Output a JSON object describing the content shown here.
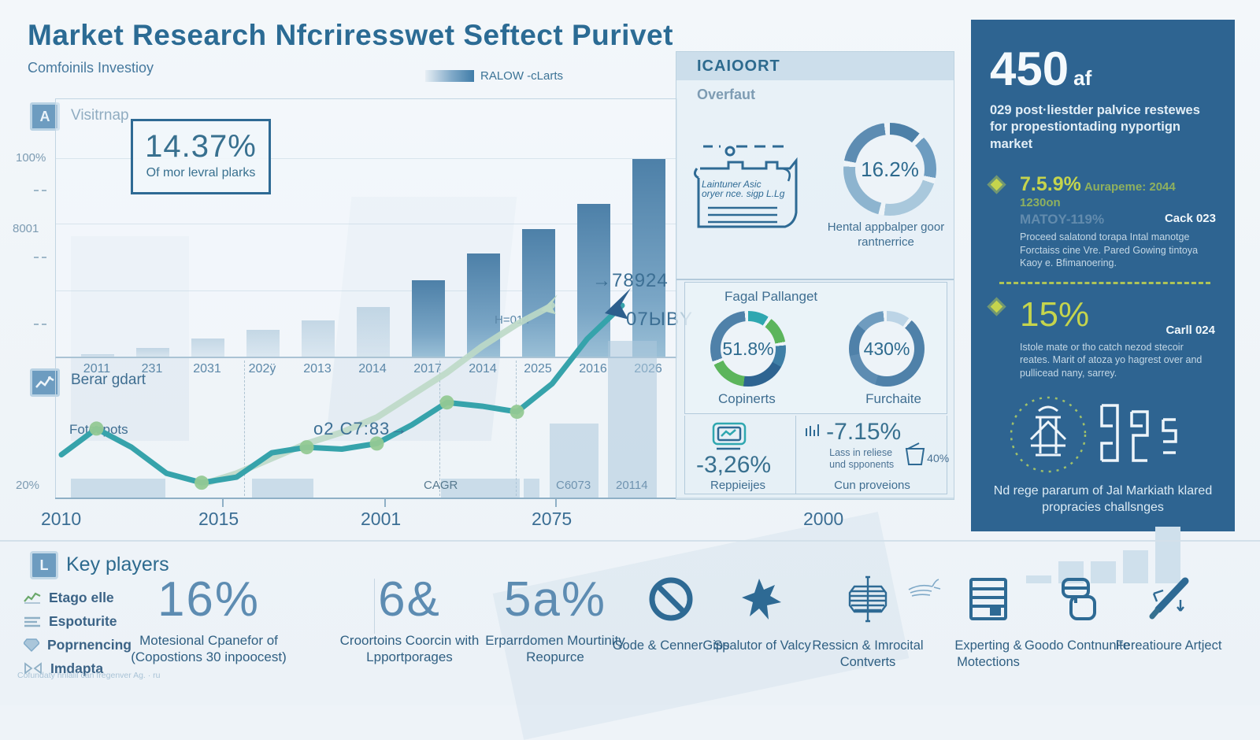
{
  "header": {
    "title": "Market Research Nfcriresswet Seftect Purivet",
    "subtitle": "Comfoinils Investioy",
    "legend_label": "RALOW -cLarts"
  },
  "bar_panel": {
    "chip": "A",
    "label": "Visitrnap",
    "stat_value": "14.37%",
    "stat_caption": "Of mor levral plarks",
    "y_tick_top": "100%",
    "y_tick_mid": "8001",
    "end_label": "H=014"
  },
  "line_panel": {
    "chip": "i",
    "label": "Berar gdart",
    "series_label": "Fotespots",
    "annotation_top": "→78924",
    "annotation_side": "07ЫBY",
    "annotation_mid": "o2 C7:83→",
    "label_cagr": "CAGR",
    "label_bar1": "C6073",
    "label_bar2": "20114",
    "y_tick": "20%",
    "x_ticks": [
      "2010",
      "2015",
      "2001",
      "2075",
      "2000"
    ]
  },
  "mid_panel": {
    "header": "ICAIOORT",
    "subheader": "Overfaut",
    "doc_note": "Laintuner Asic oryer nce. sigp L.Lg",
    "donut_main_value": "16.2%",
    "donut_main_caption": "Hental appbalper goor rantnerrice",
    "section_title": "Fagal Pallanget",
    "donut_left_value": "51.8%",
    "donut_left_caption": "Copinerts",
    "donut_right_value": "430%",
    "donut_right_caption": "Furchaite",
    "stat_left_value": "-3,26%",
    "stat_left_caption": "Reppieijes",
    "stat_right_value": "-7.15%",
    "stat_right_text": "Lass in reliese und spponents",
    "stat_right_secondary": "40%",
    "stat_right_caption": "Cun proveions"
  },
  "sidebar": {
    "headline_value": "450",
    "headline_suffix": "af",
    "headline_text": "029 post·liestder palvice restewes for propestiontading nyportign market",
    "item1_value": "7.5.9%",
    "item1_note": "Aurapeme: 2044 1230on",
    "item1_ghost": "MATOY-119%",
    "item1_tag": "Cack 023",
    "item1_body": "Proceed salatond torapa Intal manotge Forctaiss cine Vre. Pared Gowing tintoya Kaoy e. Bfimanoering.",
    "item2_value": "15%",
    "item2_tag": "Carll 024",
    "item2_body": "Istole mate or tho catch nezod stecoir reates. Marit of atoza yo hagrest over and pullicead nany, sarrey.",
    "emblem_caption": "Nd rege pararum of Jal Markiath klared propracies challsnges"
  },
  "bottom": {
    "chip": "L",
    "heading": "Key players",
    "players": [
      {
        "icon": "chart-squiggle-icon",
        "label": "Etago elle"
      },
      {
        "icon": "lines-icon",
        "label": "Espoturite"
      },
      {
        "icon": "gem-icon",
        "label": "Poprnencing"
      },
      {
        "icon": "bowtie-icon",
        "label": "Imdapta"
      }
    ],
    "footnote": "Cofundaty hnlalil can fregenver Ag. · ru",
    "stats": [
      {
        "value": "16%",
        "caption": "Motesional Cpanefor of (Copostions 30 inpoocest)"
      },
      {
        "value": "6&",
        "caption": "Croortoins Coorcin with Lpportporages"
      },
      {
        "value": "5a%",
        "caption": "Erparrdomen Mourtinity Reopurce"
      }
    ],
    "features": [
      {
        "icon": "no-sign-icon",
        "label": "Gode & CennerGips"
      },
      {
        "icon": "star-icon",
        "label": "Spalutor of Valcy"
      },
      {
        "icon": "ornament-cross-icon",
        "label": "Ressicn & Imrocital Contverts"
      },
      {
        "icon": "server-icon",
        "label": "Experting & Motections"
      },
      {
        "icon": "cards-icon",
        "label": "Goodo Contnunite"
      },
      {
        "icon": "pen-icon",
        "label": "Fereatioure Artject"
      }
    ]
  },
  "colors": {
    "title_blue": "#2b6b94",
    "bar_blue": "#4d80a8",
    "teal_line": "#36a3ab",
    "dot_green": "#93c993",
    "ghost_green": "#bcd9c6",
    "sidebar_bg": "#2e6491",
    "accent_yellow_green": "#c5d44d",
    "donut_green": "#5cb85c",
    "donut_teal": "#2fa7b0"
  },
  "chart_data": [
    {
      "type": "bar",
      "title": "Visitrnap",
      "categories": [
        "2011",
        "231",
        "2031",
        "202ÿ",
        "2013",
        "2014",
        "2017",
        "2014",
        "2025",
        "2016",
        "2026"
      ],
      "values": [
        1,
        4,
        8,
        12,
        16,
        22,
        34,
        46,
        57,
        68,
        88
      ],
      "ylim": [
        0,
        100
      ],
      "y_ticks": [
        "100%",
        "8001"
      ],
      "legend_position": "none",
      "grid": true,
      "note": "values estimated as % of plot height; first six bars faded light blue, later bars solid gradient blue; stat overlay 14.37% Of mor levral plarks; end label H=014"
    },
    {
      "type": "line",
      "title": "Berar gdart",
      "x_ticks": [
        "2010",
        "2015",
        "2001",
        "2075",
        "2000"
      ],
      "series": [
        {
          "name": "Fotespots",
          "color": "#36a3ab",
          "values": [
            20,
            34,
            24,
            10,
            5,
            8,
            21,
            24,
            23,
            26,
            36,
            48,
            46,
            43,
            58,
            82,
            100
          ]
        },
        {
          "name": "ghost-trend",
          "color": "#bcd9c6",
          "values": [
            null,
            null,
            null,
            null,
            4,
            10,
            18,
            26,
            32,
            40,
            52,
            64,
            78,
            90,
            100,
            null,
            null
          ]
        }
      ],
      "dot_indexes": [
        1,
        4,
        7,
        9,
        11,
        13
      ],
      "annotations": [
        "→78924",
        "07ЫBY",
        "o2 C7:83→",
        "CAGR",
        "C6073",
        "20114"
      ],
      "y_tick": "20%",
      "background_bars": [
        18,
        10,
        12,
        11,
        34,
        70
      ],
      "note": "teal line with green dots dips then rises sharply into an arrow; pale green companion arrow rises alongside"
    },
    {
      "type": "pie",
      "title": "Overfaut",
      "value_pct": 16.2,
      "label": "Hental appbalper goor rantnerrice",
      "style": "donut, blue segments"
    },
    {
      "type": "pie",
      "title": "Fagal Pallanget",
      "value_pct": 51.8,
      "label": "Copinerts",
      "style": "donut, blue/teal/green segments"
    },
    {
      "type": "pie",
      "title": "Fagal Pallanget",
      "value_pct": 430,
      "label": "Furchaite",
      "style": "donut, blue segments"
    },
    {
      "type": "bar",
      "title": "sidebar-mini-trend",
      "categories": [
        "",
        "",
        "",
        "",
        ""
      ],
      "values": [
        10,
        28,
        28,
        42,
        72
      ],
      "note": "small light bars, increasing"
    }
  ]
}
